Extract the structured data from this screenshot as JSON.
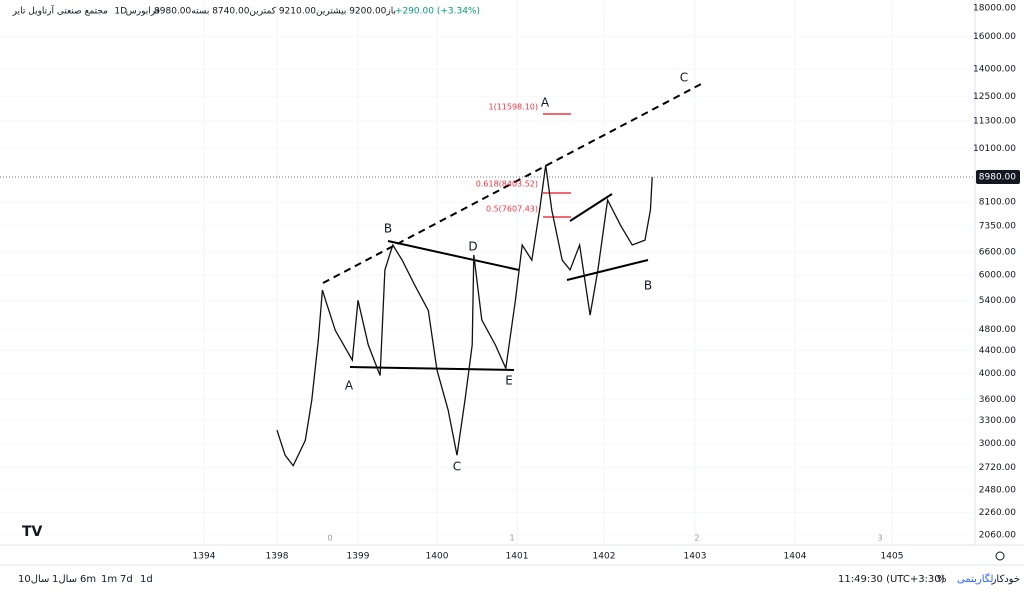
{
  "header": {
    "symbol": "مجتمع صنعتی آرتاویل تایر",
    "interval": "1D",
    "market": "فرابورس",
    "ohlc": "باز9200.00 بیشترین9210.00 کمترین8740.00 بسته8980.00",
    "change": "+290.00 (+3.34%)"
  },
  "chart_data": {
    "type": "line",
    "color": "#111111",
    "log_scale": true,
    "grid": true,
    "x": [
      1398.0,
      1398.1,
      1398.2,
      1398.35,
      1398.43,
      1398.51,
      1398.56,
      1398.6,
      1398.72,
      1398.93,
      1399.0,
      1399.13,
      1399.28,
      1399.34,
      1399.44,
      1399.56,
      1399.72,
      1399.89,
      1400.0,
      1400.14,
      1400.25,
      1400.35,
      1400.44,
      1400.46,
      1400.56,
      1400.73,
      1400.86,
      1400.98,
      1401.06,
      1401.17,
      1401.26,
      1401.33,
      1401.4,
      1401.52,
      1401.61,
      1401.72,
      1401.84,
      1401.93,
      1402.04,
      1402.18,
      1402.31,
      1402.45,
      1402.51,
      1402.53
    ],
    "values": [
      3170,
      2860,
      2740,
      3040,
      3590,
      4590,
      5640,
      5410,
      4780,
      4230,
      5410,
      4500,
      3970,
      6130,
      6790,
      6380,
      5750,
      5190,
      4060,
      3440,
      2860,
      3590,
      4500,
      6520,
      4990,
      4500,
      4090,
      5410,
      6790,
      6380,
      7840,
      9430,
      7840,
      6380,
      6130,
      6790,
      5090,
      6130,
      8170,
      7370,
      6790,
      6930,
      7840,
      8980
    ],
    "ylim": [
      1977,
      18602
    ],
    "yticks": [
      {
        "value": 18000,
        "label": "18000.00"
      },
      {
        "value": 16000,
        "label": "16000.00"
      },
      {
        "value": 14000,
        "label": "14000.00"
      },
      {
        "value": 12500,
        "label": "12500.00"
      },
      {
        "value": 11300,
        "label": "11300.00"
      },
      {
        "value": 10100,
        "label": "10100.00"
      },
      {
        "value": 8100,
        "label": "8100.00"
      },
      {
        "value": 7350,
        "label": "7350.00"
      },
      {
        "value": 6600,
        "label": "6600.00"
      },
      {
        "value": 6000,
        "label": "6000.00"
      },
      {
        "value": 5400,
        "label": "5400.00"
      },
      {
        "value": 4800,
        "label": "4800.00"
      },
      {
        "value": 4400,
        "label": "4400.00"
      },
      {
        "value": 4000,
        "label": "4000.00"
      },
      {
        "value": 3600,
        "label": "3600.00"
      },
      {
        "value": 3300,
        "label": "3300.00"
      },
      {
        "value": 3000,
        "label": "3000.00"
      },
      {
        "value": 2720,
        "label": "2720.00"
      },
      {
        "value": 2480,
        "label": "2480.00"
      },
      {
        "value": 2260,
        "label": "2260.00"
      },
      {
        "value": 2060,
        "label": "2060.00"
      }
    ],
    "xticks": [
      1394,
      1398,
      1399,
      1400,
      1401,
      1402,
      1403,
      1404,
      1405
    ],
    "last_price": {
      "value": 8980,
      "label": "8980.00"
    },
    "wave_labels": [
      "A",
      "B",
      "C",
      "D",
      "E",
      "A",
      "B",
      "C"
    ],
    "fib_labels": [
      "1(11598.10)",
      "0.618(8403.52)",
      "0.5(7607.43)"
    ],
    "time_zone_labels": [
      "0",
      "1",
      "2",
      "3"
    ]
  },
  "toolbar": {
    "ranges": [
      "10سال",
      "1سال",
      "6m",
      "1m",
      "7d",
      "1d"
    ],
    "clock": "11:49:30 (UTC+3:30)",
    "percent": "%",
    "log": "لگاریتمی",
    "auto": "خودکار"
  }
}
